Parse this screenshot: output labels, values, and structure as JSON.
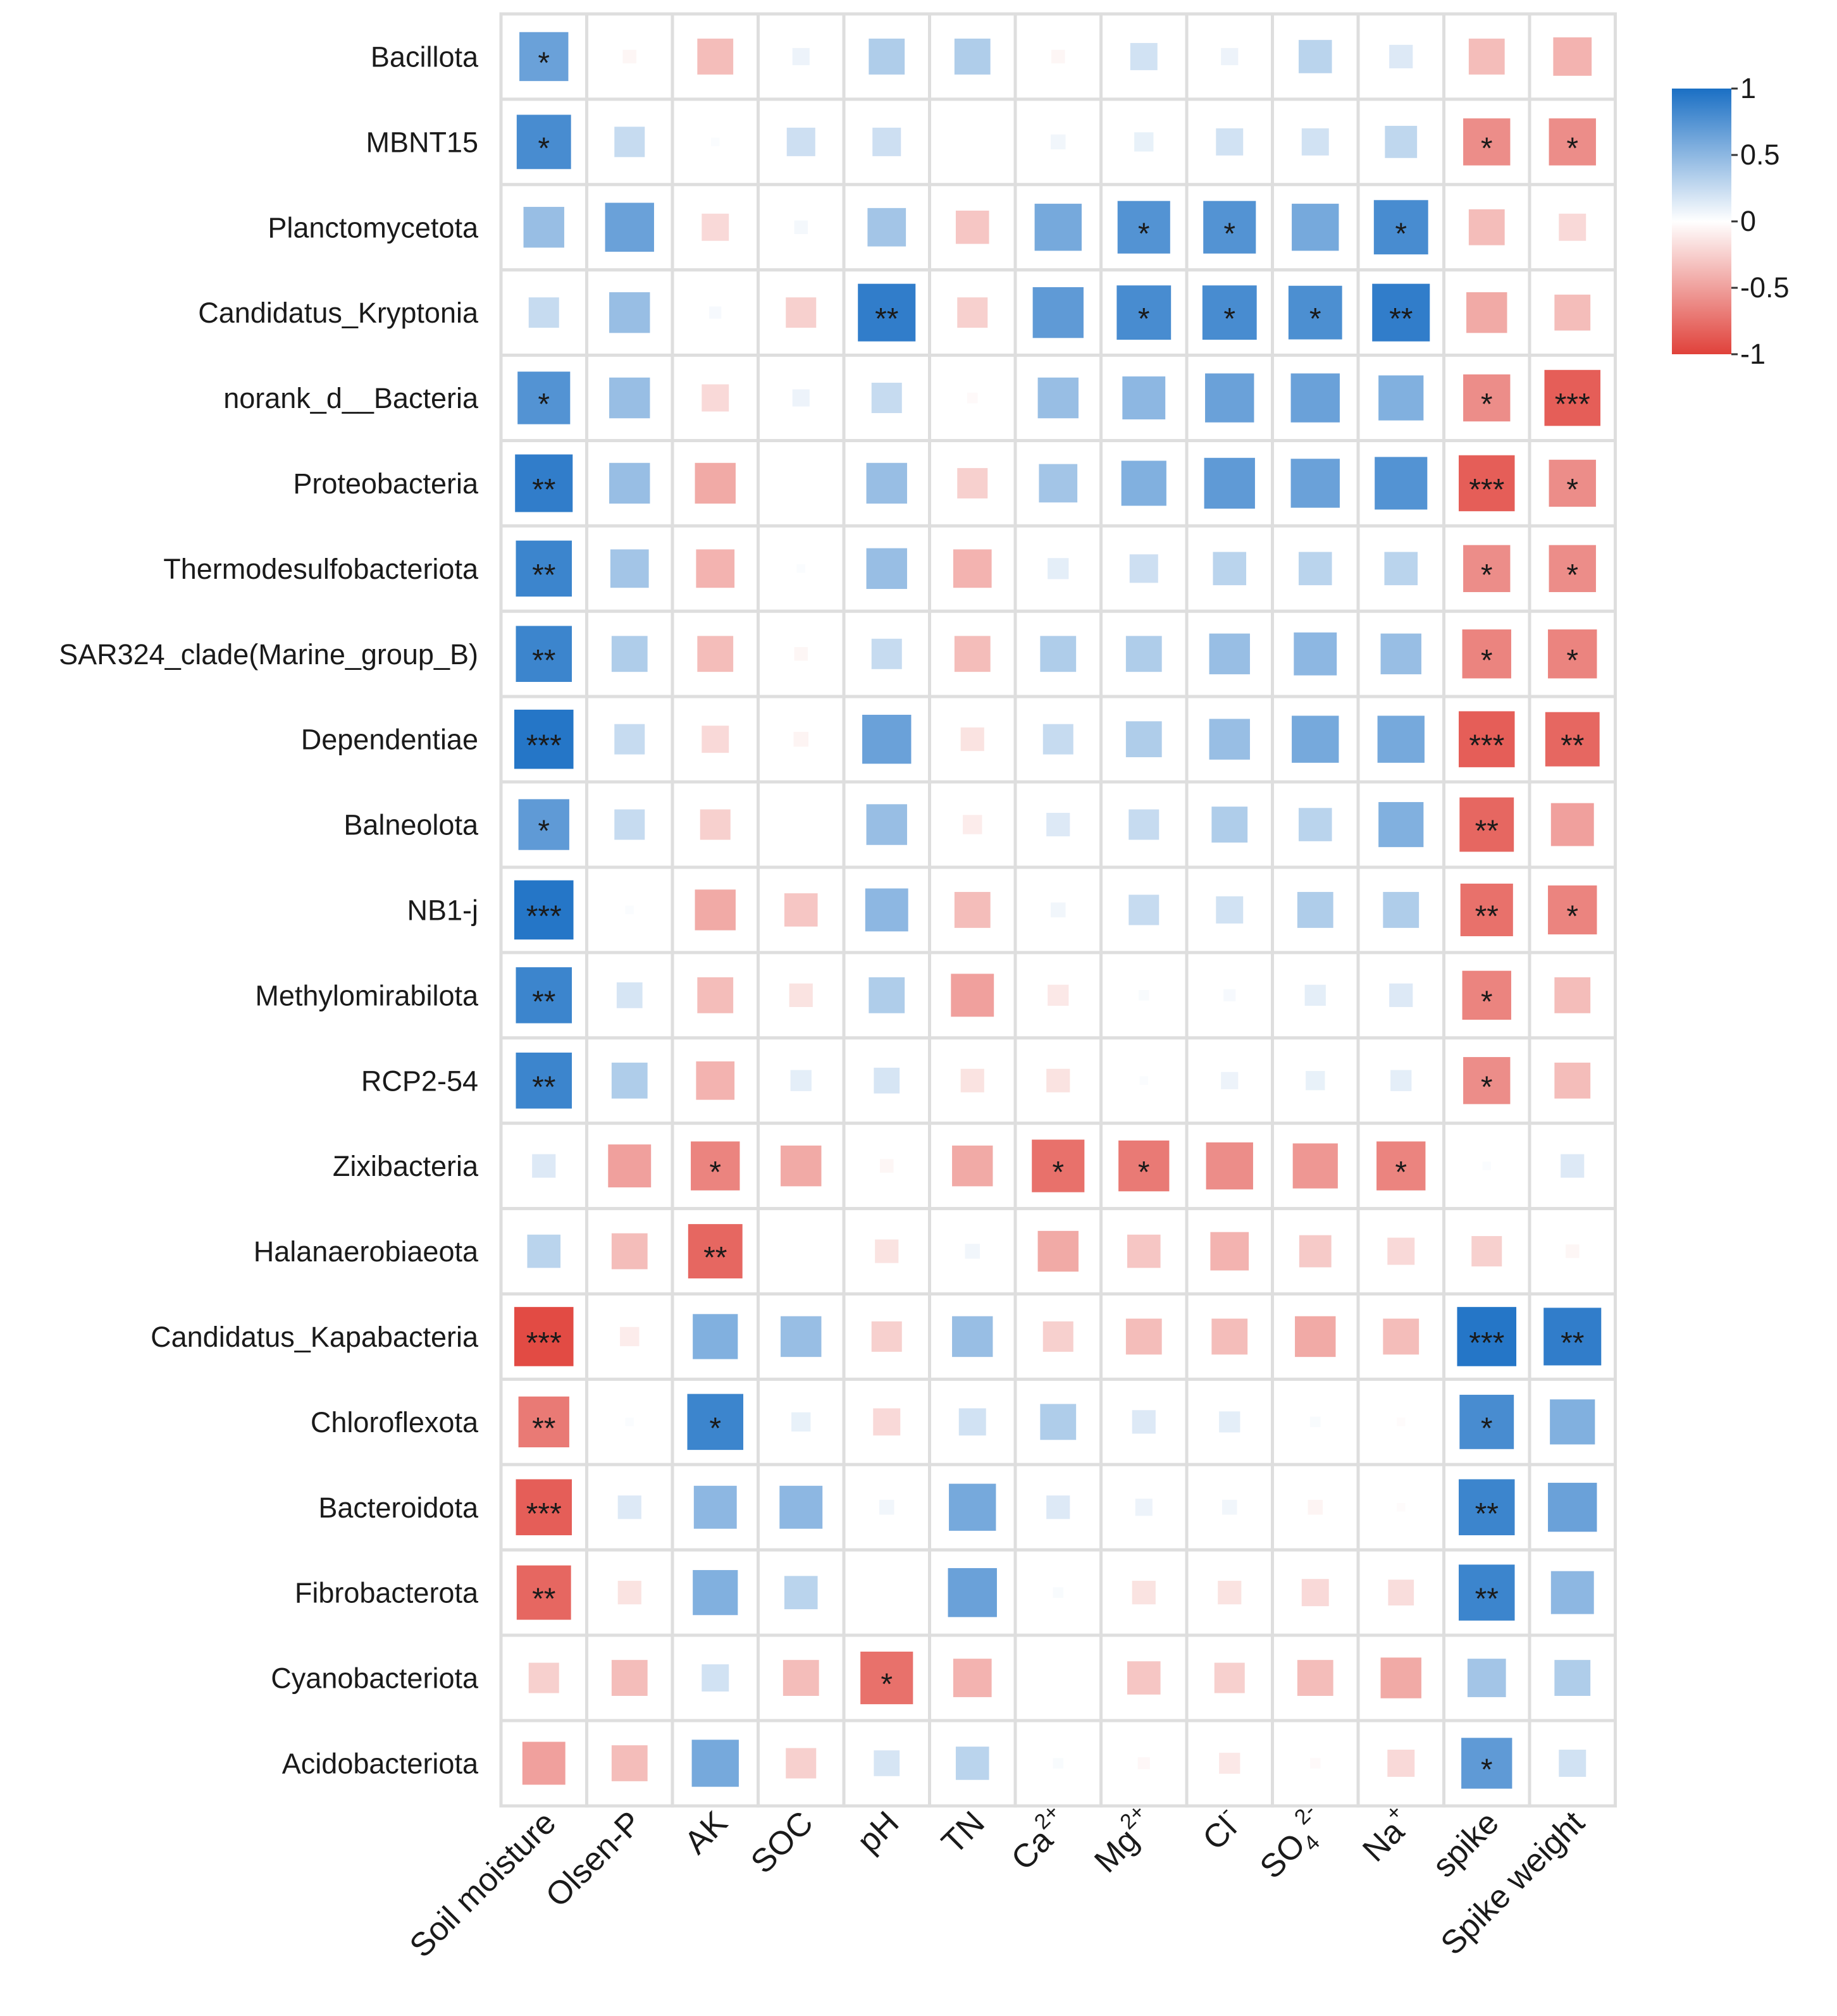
{
  "chart_data": {
    "type": "heatmap",
    "title": "",
    "rows": [
      "Bacillota",
      "MBNT15",
      "Planctomycetota",
      "Candidatus_Kryptonia",
      "norank_d__Bacteria",
      "Proteobacteria",
      "Thermodesulfobacteriota",
      "SAR324_clade(Marine_group_B)",
      "Dependentiae",
      "Balneolota",
      "NB1-j",
      "Methylomirabilota",
      "RCP2-54",
      "Zixibacteria",
      "Halanaerobiaeota",
      "Candidatus_Kapabacteria",
      "Chloroflexota",
      "Bacteroidota",
      "Fibrobacterota",
      "Cyanobacteriota",
      "Acidobacteriota"
    ],
    "columns": [
      {
        "label": "Soil moisture",
        "sub": "",
        "sup": ""
      },
      {
        "label": "Olsen-P",
        "sub": "",
        "sup": ""
      },
      {
        "label": "AK",
        "sub": "",
        "sup": ""
      },
      {
        "label": "SOC",
        "sub": "",
        "sup": ""
      },
      {
        "label": "pH",
        "sub": "",
        "sup": ""
      },
      {
        "label": "TN",
        "sub": "",
        "sup": ""
      },
      {
        "label": "Ca",
        "sub": "",
        "sup": "2+"
      },
      {
        "label": "Mg",
        "sub": "",
        "sup": "2+"
      },
      {
        "label": "Cl",
        "sub": "",
        "sup": "-"
      },
      {
        "label": "SO",
        "sub": "4",
        "sup": "2-"
      },
      {
        "label": "Na",
        "sub": "",
        "sup": "+"
      },
      {
        "label": "spike",
        "sub": "",
        "sup": ""
      },
      {
        "label": "Spike weight",
        "sub": "",
        "sup": ""
      }
    ],
    "values": [
      [
        0.65,
        -0.05,
        -0.35,
        0.08,
        0.35,
        0.35,
        -0.05,
        0.2,
        0.08,
        0.3,
        0.15,
        -0.35,
        -0.4
      ],
      [
        0.8,
        0.25,
        0.02,
        0.22,
        0.22,
        0.0,
        0.06,
        0.1,
        0.2,
        0.2,
        0.28,
        -0.6,
        -0.6
      ],
      [
        0.45,
        0.65,
        -0.2,
        0.05,
        0.4,
        -0.3,
        0.6,
        0.75,
        0.75,
        0.6,
        0.8,
        -0.35,
        -0.2
      ],
      [
        0.25,
        0.45,
        0.04,
        -0.25,
        0.9,
        -0.25,
        0.7,
        0.8,
        0.8,
        0.78,
        0.9,
        -0.45,
        -0.35
      ],
      [
        0.75,
        0.45,
        -0.2,
        0.08,
        0.25,
        -0.03,
        0.45,
        0.5,
        0.65,
        0.65,
        0.55,
        -0.6,
        -0.85
      ],
      [
        0.9,
        0.45,
        -0.45,
        0.0,
        0.45,
        -0.25,
        0.4,
        0.55,
        0.7,
        0.65,
        0.75,
        -0.85,
        -0.6
      ],
      [
        0.85,
        0.4,
        -0.4,
        0.02,
        0.45,
        -0.4,
        0.12,
        0.22,
        0.3,
        0.3,
        0.3,
        -0.6,
        -0.6
      ],
      [
        0.85,
        0.35,
        -0.35,
        -0.05,
        0.25,
        -0.35,
        0.35,
        0.35,
        0.45,
        0.5,
        0.45,
        -0.65,
        -0.65
      ],
      [
        0.95,
        0.25,
        -0.2,
        -0.06,
        0.65,
        -0.15,
        0.25,
        0.35,
        0.45,
        0.6,
        0.6,
        -0.85,
        -0.8
      ],
      [
        0.7,
        0.25,
        -0.25,
        0.0,
        0.45,
        -0.1,
        0.15,
        0.25,
        0.35,
        0.3,
        0.55,
        -0.8,
        -0.5
      ],
      [
        0.95,
        0.02,
        -0.45,
        -0.3,
        0.5,
        -0.35,
        0.06,
        0.25,
        0.2,
        0.35,
        0.35,
        -0.75,
        -0.65
      ],
      [
        0.85,
        0.18,
        -0.35,
        -0.15,
        0.35,
        -0.5,
        -0.12,
        0.03,
        0.04,
        0.12,
        0.15,
        -0.65,
        -0.35
      ],
      [
        0.85,
        0.35,
        -0.4,
        0.12,
        0.18,
        -0.15,
        -0.15,
        0.02,
        0.08,
        0.1,
        0.12,
        -0.6,
        -0.35
      ],
      [
        0.15,
        -0.5,
        -0.65,
        -0.45,
        -0.05,
        -0.45,
        -0.75,
        -0.7,
        -0.6,
        -0.55,
        -0.65,
        0.02,
        0.15
      ],
      [
        0.3,
        -0.35,
        -0.8,
        0.0,
        -0.15,
        0.06,
        -0.45,
        -0.3,
        -0.4,
        -0.28,
        -0.2,
        -0.25,
        -0.05
      ],
      [
        -0.95,
        -0.1,
        0.55,
        0.45,
        -0.25,
        0.45,
        -0.25,
        -0.35,
        -0.35,
        -0.45,
        -0.35,
        0.95,
        0.9
      ],
      [
        -0.7,
        0.02,
        0.85,
        0.1,
        -0.2,
        0.2,
        0.35,
        0.15,
        0.12,
        0.03,
        -0.02,
        0.8,
        0.55
      ],
      [
        -0.85,
        0.15,
        0.5,
        0.5,
        0.06,
        0.6,
        0.15,
        0.08,
        0.06,
        -0.06,
        -0.02,
        0.85,
        0.65
      ],
      [
        -0.8,
        -0.15,
        0.55,
        0.3,
        0.0,
        0.65,
        0.03,
        -0.15,
        -0.15,
        -0.2,
        -0.18,
        0.85,
        0.5
      ],
      [
        -0.25,
        -0.35,
        0.2,
        -0.35,
        -0.75,
        -0.4,
        0.0,
        -0.3,
        -0.25,
        -0.35,
        -0.45,
        0.4,
        0.35
      ],
      [
        -0.5,
        -0.35,
        0.6,
        -0.25,
        0.18,
        0.3,
        0.03,
        -0.04,
        -0.12,
        -0.03,
        -0.2,
        0.7,
        0.2
      ]
    ],
    "significance": [
      [
        "*",
        "",
        "",
        "",
        "",
        "",
        "",
        "",
        "",
        "",
        "",
        "",
        ""
      ],
      [
        "*",
        "",
        "",
        "",
        "",
        "",
        "",
        "",
        "",
        "",
        "",
        "*",
        "*"
      ],
      [
        "",
        "",
        "",
        "",
        "",
        "",
        "",
        "*",
        "*",
        "",
        "*",
        "",
        ""
      ],
      [
        "",
        "",
        "",
        "",
        "**",
        "",
        "",
        "*",
        "*",
        "*",
        "**",
        "",
        ""
      ],
      [
        "*",
        "",
        "",
        "",
        "",
        "",
        "",
        "",
        "",
        "",
        "",
        "*",
        "***"
      ],
      [
        "**",
        "",
        "",
        "",
        "",
        "",
        "",
        "",
        "",
        "",
        "",
        "***",
        "*"
      ],
      [
        "**",
        "",
        "",
        "",
        "",
        "",
        "",
        "",
        "",
        "",
        "",
        "*",
        "*"
      ],
      [
        "**",
        "",
        "",
        "",
        "",
        "",
        "",
        "",
        "",
        "",
        "",
        "*",
        "*"
      ],
      [
        "***",
        "",
        "",
        "",
        "",
        "",
        "",
        "",
        "",
        "",
        "",
        "***",
        "**"
      ],
      [
        "*",
        "",
        "",
        "",
        "",
        "",
        "",
        "",
        "",
        "",
        "",
        "**",
        ""
      ],
      [
        "***",
        "",
        "",
        "",
        "",
        "",
        "",
        "",
        "",
        "",
        "",
        "**",
        "*"
      ],
      [
        "**",
        "",
        "",
        "",
        "",
        "",
        "",
        "",
        "",
        "",
        "",
        "*",
        ""
      ],
      [
        "**",
        "",
        "",
        "",
        "",
        "",
        "",
        "",
        "",
        "",
        "",
        "*",
        ""
      ],
      [
        "",
        "",
        "*",
        "",
        "",
        "",
        "*",
        "*",
        "",
        "",
        "*",
        "",
        ""
      ],
      [
        "",
        "",
        "**",
        "",
        "",
        "",
        "",
        "",
        "",
        "",
        "",
        "",
        ""
      ],
      [
        "***",
        "",
        "",
        "",
        "",
        "",
        "",
        "",
        "",
        "",
        "",
        "***",
        "**"
      ],
      [
        "**",
        "",
        "*",
        "",
        "",
        "",
        "",
        "",
        "",
        "",
        "",
        "*",
        ""
      ],
      [
        "***",
        "",
        "",
        "",
        "",
        "",
        "",
        "",
        "",
        "",
        "",
        "**",
        ""
      ],
      [
        "**",
        "",
        "",
        "",
        "",
        "",
        "",
        "",
        "",
        "",
        "",
        "**",
        ""
      ],
      [
        "",
        "",
        "",
        "",
        "*",
        "",
        "",
        "",
        "",
        "",
        "",
        "",
        ""
      ],
      [
        "",
        "",
        "",
        "",
        "",
        "",
        "",
        "",
        "",
        "",
        "",
        "*",
        ""
      ]
    ],
    "colorbar": {
      "range": [
        -1,
        1
      ],
      "ticks": [
        "1",
        "0.5",
        "0",
        "-0.5",
        "-1"
      ],
      "tick_values": [
        1,
        0.5,
        0,
        -0.5,
        -1
      ],
      "colors": {
        "pos": "#1a6fc4",
        "mid": "#ffffff",
        "neg": "#e0413a"
      }
    },
    "grid_color": "#dedede"
  }
}
